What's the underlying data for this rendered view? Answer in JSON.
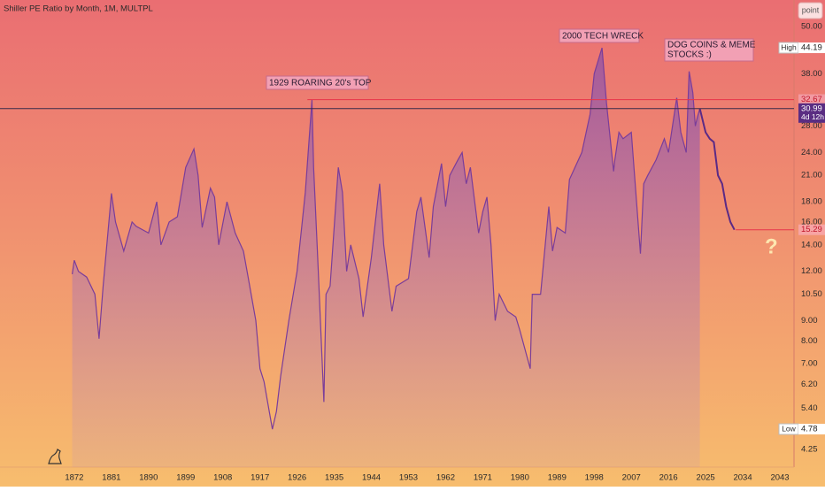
{
  "chart_data": {
    "type": "line",
    "title": "Shiller PE Ratio by Month, 1M, MULTPL",
    "log_scale": true,
    "xlim": [
      1854,
      2046
    ],
    "xticks": [
      1872,
      1881,
      1890,
      1899,
      1908,
      1917,
      1926,
      1935,
      1944,
      1953,
      1962,
      1971,
      1980,
      1989,
      1998,
      2007,
      2016,
      2025,
      2034,
      2043
    ],
    "ylim": [
      3.83,
      58.4
    ],
    "yticks": [
      {
        "value": 50,
        "label": "50.00"
      },
      {
        "value": 38,
        "label": "38.00"
      },
      {
        "value": 28,
        "label": "28.00"
      },
      {
        "value": 24,
        "label": "24.00"
      },
      {
        "value": 21,
        "label": "21.00"
      },
      {
        "value": 18,
        "label": "18.00"
      },
      {
        "value": 16,
        "label": "16.00"
      },
      {
        "value": 14,
        "label": "14.00"
      },
      {
        "value": 12,
        "label": "12.00"
      },
      {
        "value": 10.5,
        "label": "10.50"
      },
      {
        "value": 9,
        "label": "9.00"
      },
      {
        "value": 8,
        "label": "8.00"
      },
      {
        "value": 7,
        "label": "7.00"
      },
      {
        "value": 6.2,
        "label": "6.20"
      },
      {
        "value": 5.4,
        "label": "5.40"
      },
      {
        "value": 4.25,
        "label": "4.25"
      }
    ],
    "series": [
      {
        "color": "#7a3d9a",
        "x": [
          1871.5,
          1872,
          1873,
          1875,
          1877,
          1878,
          1879,
          1881,
          1882,
          1884,
          1886,
          1887,
          1890,
          1892,
          1893,
          1895,
          1897,
          1899,
          1901,
          1902,
          1903,
          1905,
          1906,
          1907,
          1909,
          1911,
          1913,
          1914,
          1916,
          1917,
          1918,
          1920,
          1921,
          1922,
          1924,
          1926,
          1928,
          1929.6,
          1930,
          1931,
          1932.5,
          1933,
          1934,
          1936,
          1937,
          1938,
          1939,
          1941,
          1942,
          1944,
          1946,
          1947,
          1949,
          1950,
          1953,
          1955,
          1956,
          1958,
          1959,
          1961,
          1962,
          1963,
          1965,
          1966,
          1967,
          1968,
          1970,
          1971,
          1972,
          1973,
          1974,
          1975,
          1977,
          1979,
          1980,
          1982.5,
          1983,
          1985,
          1987,
          1987.9,
          1989,
          1991,
          1992,
          1995,
          1997,
          1998,
          1999.9,
          2001,
          2002.7,
          2003,
          2004,
          2005,
          2007,
          2009.2,
          2010,
          2011,
          2013,
          2015,
          2016,
          2018,
          2019,
          2020.3,
          2021,
          2021.9,
          2022.5,
          2023,
          2023.6
        ],
        "values": [
          11.8,
          12.8,
          12,
          11.6,
          10.5,
          8.1,
          11,
          18.9,
          16,
          13.5,
          16,
          15.6,
          15,
          18,
          14,
          16,
          16.5,
          22,
          24.5,
          21,
          15.5,
          19.5,
          18.5,
          14,
          18,
          15,
          13.5,
          11.8,
          9,
          6.8,
          6.3,
          4.78,
          5.3,
          6.5,
          9,
          12,
          19,
          32.6,
          22,
          13,
          5.6,
          10.5,
          11,
          22,
          19,
          12,
          14,
          11.5,
          9.2,
          13,
          20,
          14,
          9.5,
          11,
          11.5,
          17,
          18.5,
          13,
          17.5,
          22.5,
          17.5,
          21,
          23,
          24,
          20,
          22,
          15,
          17,
          18.5,
          14,
          9,
          10.5,
          9.5,
          9.2,
          8.5,
          6.8,
          10.5,
          10.5,
          17.5,
          13.5,
          15.5,
          15,
          20.5,
          24,
          30,
          38,
          44.19,
          32,
          21.5,
          23,
          27,
          26,
          27,
          13.3,
          20,
          21,
          23,
          26,
          24,
          33,
          27,
          24,
          38.5,
          34,
          28,
          29.5,
          30.99
        ]
      }
    ],
    "projection": {
      "color": "#5b2a86",
      "x": [
        2023.6,
        2025,
        2026,
        2027,
        2028,
        2029,
        2030,
        2031,
        2032
      ],
      "values": [
        30.99,
        27,
        26,
        25.5,
        21,
        20,
        17.5,
        16,
        15.29
      ]
    },
    "price_lines": [
      {
        "value": 32.67,
        "color": "#e8344a",
        "from": 1928.5
      },
      {
        "value": 30.99,
        "color": "#3a2a4a",
        "from": 1854
      },
      {
        "value": 15.29,
        "color": "#e8344a",
        "from": 2032.3
      }
    ],
    "price_labels": [
      {
        "tag": "High",
        "value": 44.19,
        "bg": "#ffffff",
        "fg": "#222222"
      },
      {
        "value": 32.67,
        "bg": "#f29aa2",
        "fg": "#c0152a"
      },
      {
        "value": 30.99,
        "bg": "#5a2d82",
        "fg": "#ffffff",
        "countdown": "4d 12h"
      },
      {
        "value": 15.29,
        "bg": "#f7a4a4",
        "fg": "#c0152a"
      },
      {
        "tag": "Low",
        "value": 4.78,
        "bg": "#ffffff",
        "fg": "#222222"
      }
    ],
    "annotations": [
      "1929 ROARING 20's TOP",
      "2000 TECH WRECK",
      "DOG COINS & MEME",
      "STOCKS :)",
      "?"
    ],
    "button": "point"
  }
}
